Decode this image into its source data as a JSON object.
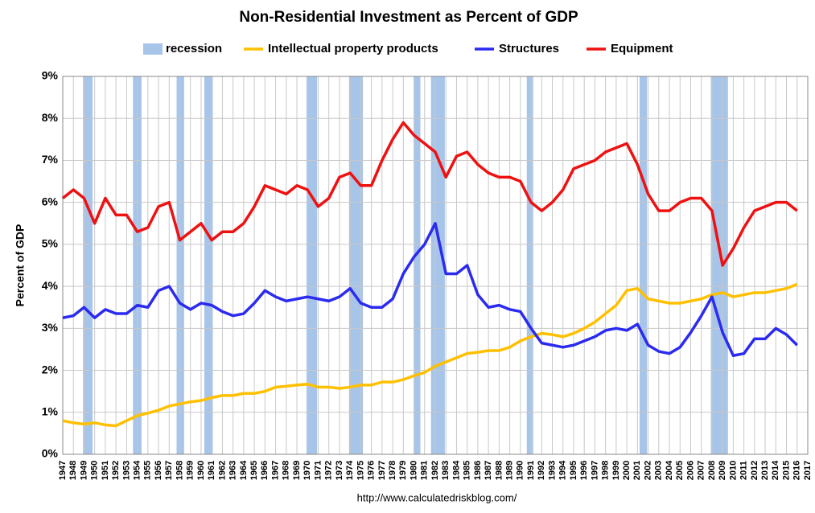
{
  "chart_data": {
    "type": "line",
    "title": "Non-Residential Investment as Percent of GDP",
    "y_label": "Percent of GDP",
    "source": "http://www.calculatedriskblog.com/",
    "grid": true,
    "xlim": [
      1947,
      2017
    ],
    "xticks": [
      1947,
      1948,
      1949,
      1950,
      1951,
      1952,
      1953,
      1954,
      1955,
      1956,
      1957,
      1958,
      1959,
      1960,
      1961,
      1962,
      1963,
      1964,
      1965,
      1966,
      1967,
      1968,
      1969,
      1970,
      1971,
      1972,
      1973,
      1974,
      1975,
      1976,
      1977,
      1978,
      1979,
      1980,
      1981,
      1982,
      1983,
      1984,
      1985,
      1986,
      1987,
      1988,
      1989,
      1990,
      1991,
      1992,
      1993,
      1994,
      1995,
      1996,
      1997,
      1998,
      1999,
      2000,
      2001,
      2002,
      2003,
      2004,
      2005,
      2006,
      2007,
      2008,
      2009,
      2010,
      2011,
      2012,
      2013,
      2014,
      2015,
      2016,
      2017
    ],
    "ylim": [
      0,
      9
    ],
    "yticks": [
      {
        "value": 0,
        "label": "0%"
      },
      {
        "value": 1,
        "label": "1%"
      },
      {
        "value": 2,
        "label": "2%"
      },
      {
        "value": 3,
        "label": "3%"
      },
      {
        "value": 4,
        "label": "4%"
      },
      {
        "value": 5,
        "label": "5%"
      },
      {
        "value": 6,
        "label": "6%"
      },
      {
        "value": 7,
        "label": "7%"
      },
      {
        "value": 8,
        "label": "8%"
      },
      {
        "value": 9,
        "label": "9%"
      }
    ],
    "recession": {
      "name": "recession",
      "color": "#a7c4e9",
      "periods": [
        [
          1948.9,
          1949.8
        ],
        [
          1953.6,
          1954.4
        ],
        [
          1957.7,
          1958.4
        ],
        [
          1960.3,
          1961.1
        ],
        [
          1969.9,
          1970.9
        ],
        [
          1973.9,
          1975.2
        ],
        [
          1980.0,
          1980.6
        ],
        [
          1981.6,
          1982.9
        ],
        [
          1990.6,
          1991.2
        ],
        [
          2001.2,
          2001.9
        ],
        [
          2007.9,
          2009.5
        ]
      ]
    },
    "x": [
      1947,
      1948,
      1949,
      1950,
      1951,
      1952,
      1953,
      1954,
      1955,
      1956,
      1957,
      1958,
      1959,
      1960,
      1961,
      1962,
      1963,
      1964,
      1965,
      1966,
      1967,
      1968,
      1969,
      1970,
      1971,
      1972,
      1973,
      1974,
      1975,
      1976,
      1977,
      1978,
      1979,
      1980,
      1981,
      1982,
      1983,
      1984,
      1985,
      1986,
      1987,
      1988,
      1989,
      1990,
      1991,
      1992,
      1993,
      1994,
      1995,
      1996,
      1997,
      1998,
      1999,
      2000,
      2001,
      2002,
      2003,
      2004,
      2005,
      2006,
      2007,
      2008,
      2009,
      2010,
      2011,
      2012,
      2013,
      2014,
      2015,
      2016
    ],
    "series": [
      {
        "name": "Intellectual property products",
        "color": "#ffc000",
        "values": [
          0.8,
          0.75,
          0.72,
          0.75,
          0.7,
          0.68,
          0.8,
          0.92,
          0.98,
          1.05,
          1.15,
          1.2,
          1.25,
          1.28,
          1.35,
          1.4,
          1.4,
          1.45,
          1.45,
          1.5,
          1.6,
          1.62,
          1.65,
          1.67,
          1.6,
          1.6,
          1.57,
          1.6,
          1.65,
          1.65,
          1.72,
          1.72,
          1.78,
          1.87,
          1.95,
          2.1,
          2.2,
          2.3,
          2.4,
          2.43,
          2.47,
          2.47,
          2.55,
          2.7,
          2.8,
          2.88,
          2.85,
          2.8,
          2.88,
          3.0,
          3.15,
          3.35,
          3.55,
          3.9,
          3.95,
          3.7,
          3.65,
          3.6,
          3.6,
          3.65,
          3.7,
          3.8,
          3.85,
          3.75,
          3.8,
          3.85,
          3.85,
          3.9,
          3.95,
          4.05
        ]
      },
      {
        "name": "Structures",
        "color": "#2b2bf0",
        "values": [
          3.25,
          3.3,
          3.5,
          3.25,
          3.45,
          3.35,
          3.35,
          3.55,
          3.5,
          3.9,
          4.0,
          3.6,
          3.45,
          3.6,
          3.55,
          3.4,
          3.3,
          3.35,
          3.6,
          3.9,
          3.75,
          3.65,
          3.7,
          3.75,
          3.7,
          3.65,
          3.75,
          3.95,
          3.6,
          3.5,
          3.5,
          3.7,
          4.3,
          4.7,
          5.0,
          5.5,
          4.3,
          4.3,
          4.5,
          3.8,
          3.5,
          3.55,
          3.45,
          3.4,
          3.0,
          2.65,
          2.6,
          2.55,
          2.6,
          2.7,
          2.8,
          2.95,
          3.0,
          2.95,
          3.1,
          2.6,
          2.45,
          2.4,
          2.55,
          2.9,
          3.3,
          3.75,
          2.9,
          2.35,
          2.4,
          2.75,
          2.75,
          3.0,
          2.85,
          2.6
        ]
      },
      {
        "name": "Equipment",
        "color": "#ee1111",
        "values": [
          6.1,
          6.3,
          6.1,
          5.5,
          6.1,
          5.7,
          5.7,
          5.3,
          5.4,
          5.9,
          6.0,
          5.1,
          5.3,
          5.5,
          5.1,
          5.3,
          5.3,
          5.5,
          5.9,
          6.4,
          6.3,
          6.2,
          6.4,
          6.3,
          5.9,
          6.1,
          6.6,
          6.7,
          6.4,
          6.4,
          7.0,
          7.5,
          7.9,
          7.6,
          7.4,
          7.2,
          6.6,
          7.1,
          7.2,
          6.9,
          6.7,
          6.6,
          6.6,
          6.5,
          6.0,
          5.8,
          6.0,
          6.3,
          6.8,
          6.9,
          7.0,
          7.2,
          7.3,
          7.4,
          6.9,
          6.2,
          5.8,
          5.8,
          6.0,
          6.1,
          6.1,
          5.8,
          4.5,
          4.9,
          5.4,
          5.8,
          5.9,
          6.0,
          6.0,
          5.8
        ]
      }
    ]
  }
}
